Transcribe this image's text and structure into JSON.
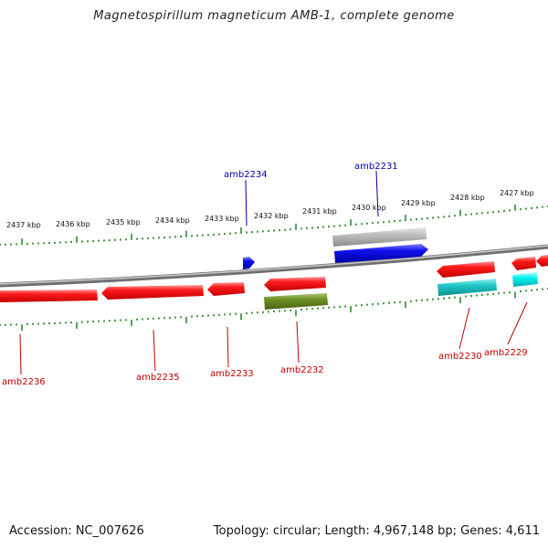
{
  "title": "Magnetospirillum magneticum AMB-1, complete genome",
  "footer": {
    "accession": "Accession: NC_007626",
    "summary": "Topology: circular; Length: 4,967,148 bp; Genes: 4,611"
  },
  "colors": {
    "backbone": "#8a8a8a",
    "ticks": "#2e8b2e",
    "forward_label": "#0000a0",
    "reverse_label": "#c00000",
    "red_gene": "#ff1a1a",
    "blue_gene": "#1010ee",
    "grey_gene": "#bdbdbd",
    "olive_gene": "#6b8e23",
    "cyan_gene": "#1fc6c6",
    "aqua_gene": "#00f0f0"
  },
  "ruler": {
    "labels": [
      "2437 kbp",
      "2436 kbp",
      "2435 kbp",
      "2434 kbp",
      "2433 kbp",
      "2432 kbp",
      "2431 kbp",
      "2430 kbp",
      "2429 kbp",
      "2428 kbp",
      "2427 kbp"
    ]
  },
  "genes": [
    {
      "label": "amb2236",
      "strand": "reverse",
      "color": "red_gene"
    },
    {
      "label": "amb2235",
      "strand": "reverse",
      "color": "red_gene"
    },
    {
      "label": "amb2234",
      "strand": "forward",
      "color": "blue_gene"
    },
    {
      "label": "amb2233",
      "strand": "reverse",
      "color": "red_gene"
    },
    {
      "label": "amb2232",
      "strand": "reverse",
      "color": "olive_gene"
    },
    {
      "label": "amb2231",
      "strand": "forward",
      "color": "blue_gene"
    },
    {
      "label": "amb2230",
      "strand": "reverse",
      "color": "cyan_gene"
    },
    {
      "label": "amb2229",
      "strand": "reverse",
      "color": "aqua_gene"
    }
  ]
}
